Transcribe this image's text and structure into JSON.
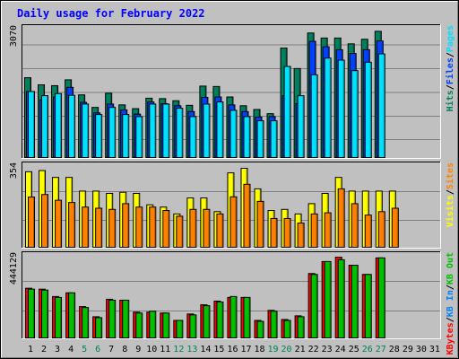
{
  "chart_data": {
    "type": "bar",
    "title": "Daily usage for February 2022",
    "days": [
      "1",
      "2",
      "3",
      "4",
      "5",
      "6",
      "7",
      "8",
      "9",
      "10",
      "11",
      "12",
      "13",
      "14",
      "15",
      "16",
      "17",
      "18",
      "19",
      "20",
      "21",
      "22",
      "23",
      "24",
      "25",
      "26",
      "27",
      "28",
      "29",
      "30",
      "31"
    ],
    "weekend_days": [
      "5",
      "6",
      "12",
      "13",
      "19",
      "20",
      "26",
      "27"
    ],
    "colors": {
      "hits": "#00805c",
      "files": "#0040ff",
      "pages": "#00e0ff",
      "visits": "#ffff00",
      "sites": "#ff8000",
      "kb_in": "#0080ff",
      "kb_out": "#00c000",
      "kbytes": "#ff0000",
      "frame_dark": "#808080",
      "frame_light": "#ffffff",
      "frame_bg": "#c0c0c0",
      "title": "#0000ff",
      "weekday_label": "#000000",
      "weekend_label": "#00805c"
    },
    "panel1": {
      "max_label": "3070",
      "legend": [
        {
          "key": "hits",
          "text": "Hits"
        },
        {
          "key": "sep",
          "text": "/"
        },
        {
          "key": "files",
          "text": "Files"
        },
        {
          "key": "sep",
          "text": "/"
        },
        {
          "key": "pages",
          "text": "Pages"
        }
      ],
      "max": 3070,
      "series": [
        {
          "name": "Hits",
          "values": [
            1930,
            1760,
            1740,
            1880,
            1520,
            1220,
            1560,
            1280,
            1190,
            1440,
            1430,
            1380,
            1270,
            1730,
            1720,
            1470,
            1260,
            1170,
            1070,
            2640,
            2150,
            3000,
            2880,
            2880,
            2740,
            2850,
            3040,
            0,
            0,
            0,
            0
          ]
        },
        {
          "name": "Files",
          "values": [
            1600,
            1400,
            1470,
            1700,
            1340,
            1090,
            1300,
            1160,
            1060,
            1350,
            1310,
            1260,
            1120,
            1460,
            1470,
            1280,
            1120,
            990,
            1000,
            1500,
            1310,
            2800,
            2670,
            2600,
            2510,
            2600,
            2810,
            0,
            0,
            0,
            0
          ]
        },
        {
          "name": "Pages",
          "values": [
            1600,
            1500,
            1550,
            1510,
            1300,
            1050,
            1220,
            1050,
            1000,
            1300,
            1300,
            1200,
            1000,
            1300,
            1350,
            1150,
            1000,
            900,
            900,
            2200,
            1500,
            2000,
            2400,
            2350,
            2100,
            2300,
            2500,
            0,
            0,
            0,
            0
          ]
        }
      ]
    },
    "panel2": {
      "max_label": "354",
      "legend": [
        {
          "key": "visits",
          "text": "Visits"
        },
        {
          "key": "sep",
          "text": "/"
        },
        {
          "key": "sites",
          "text": "Sites"
        }
      ],
      "max": 354,
      "series": [
        {
          "name": "Visits",
          "values": [
            335,
            340,
            310,
            310,
            250,
            250,
            240,
            245,
            240,
            190,
            180,
            150,
            220,
            220,
            160,
            330,
            350,
            260,
            165,
            170,
            150,
            195,
            240,
            310,
            250,
            250,
            250,
            250,
            0,
            0,
            0
          ]
        },
        {
          "name": "Sites",
          "values": [
            224,
            235,
            210,
            200,
            180,
            175,
            170,
            195,
            180,
            180,
            165,
            140,
            170,
            170,
            150,
            225,
            280,
            205,
            130,
            130,
            110,
            150,
            155,
            260,
            195,
            145,
            160,
            175,
            0,
            0,
            0
          ]
        }
      ]
    },
    "panel3": {
      "max_label": "444129",
      "legend": [
        {
          "key": "kbytes",
          "text": "KBytes"
        },
        {
          "key": "sep",
          "text": "/"
        },
        {
          "key": "kb_in",
          "text": "KB In"
        },
        {
          "key": "sep",
          "text": "/"
        },
        {
          "key": "kb_out",
          "text": "KB Out"
        }
      ],
      "max": 444129,
      "series": [
        {
          "name": "KBytes",
          "values": [
            275000,
            270000,
            230000,
            250000,
            175000,
            120000,
            215000,
            210000,
            145000,
            145000,
            140000,
            100000,
            135000,
            185000,
            205000,
            225000,
            225000,
            100000,
            155000,
            105000,
            125000,
            355000,
            420000,
            444129,
            400000,
            350000,
            440000,
            0,
            0,
            0,
            0
          ]
        },
        {
          "name": "KB Out",
          "values": [
            270000,
            265000,
            225000,
            250000,
            170000,
            115000,
            210000,
            210000,
            140000,
            150000,
            140000,
            100000,
            130000,
            180000,
            200000,
            230000,
            225000,
            95000,
            150000,
            100000,
            120000,
            350000,
            420000,
            430000,
            400000,
            350000,
            440000,
            0,
            0,
            0,
            0
          ]
        }
      ]
    }
  }
}
